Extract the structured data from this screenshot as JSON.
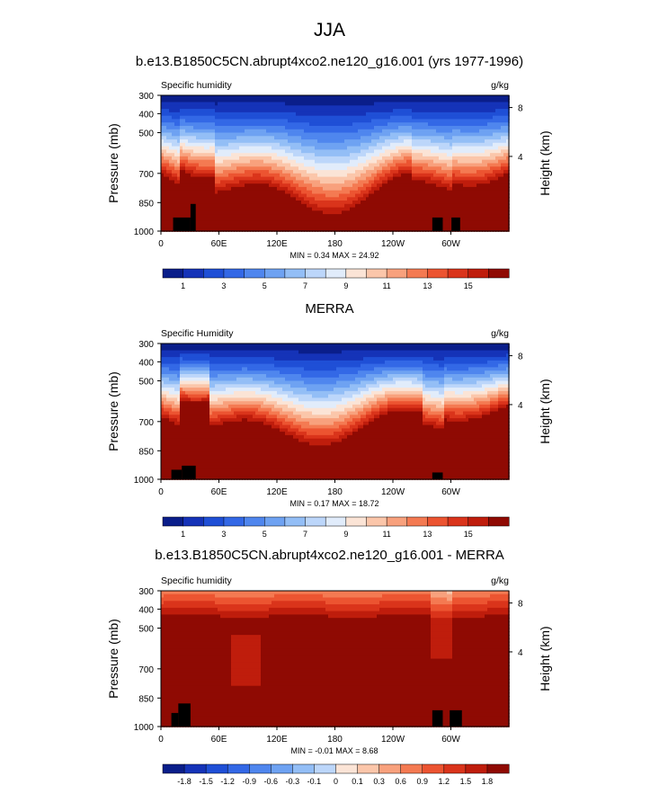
{
  "figure_title": "JJA",
  "chart_data": [
    {
      "type": "heatmap",
      "title": "b.e13.B1850C5CN.abrupt4xco2.ne120_g16.001 (yrs 1977-1996)",
      "variable_label": "Specific humidity",
      "units": "g/kg",
      "ylabel": "Pressure (mb)",
      "ylabel_right": "Height (km)",
      "x_ticks": [
        "0",
        "60E",
        "120E",
        "180",
        "120W",
        "60W"
      ],
      "y_ticks": [
        "300",
        "400",
        "500",
        "700",
        "850",
        "1000"
      ],
      "right_ticks": [
        "8",
        "4"
      ],
      "stats": "MIN =  0.34  MAX = 24.92",
      "colorbar_labels": [
        "1",
        "3",
        "5",
        "7",
        "9",
        "11",
        "13",
        "15"
      ],
      "min": 0.34,
      "max": 24.92
    },
    {
      "type": "heatmap",
      "title": "MERRA",
      "variable_label": "Specific Humidity",
      "units": "g/kg",
      "ylabel": "Pressure (mb)",
      "ylabel_right": "Height (km)",
      "x_ticks": [
        "0",
        "60E",
        "120E",
        "180",
        "120W",
        "60W"
      ],
      "y_ticks": [
        "300",
        "400",
        "500",
        "700",
        "850",
        "1000"
      ],
      "right_ticks": [
        "8",
        "4"
      ],
      "stats": "MIN =  0.17  MAX = 18.72",
      "colorbar_labels": [
        "1",
        "3",
        "5",
        "7",
        "9",
        "11",
        "13",
        "15"
      ],
      "min": 0.17,
      "max": 18.72
    },
    {
      "type": "heatmap",
      "title": "b.e13.B1850C5CN.abrupt4xco2.ne120_g16.001 - MERRA",
      "variable_label": "Specific humidity",
      "units": "g/kg",
      "ylabel": "Pressure (mb)",
      "ylabel_right": "Height (km)",
      "x_ticks": [
        "0",
        "60E",
        "120E",
        "180",
        "120W",
        "60W"
      ],
      "y_ticks": [
        "300",
        "400",
        "500",
        "700",
        "850",
        "1000"
      ],
      "right_ticks": [
        "8",
        "4"
      ],
      "stats": "MIN = -0.01  MAX =  8.68",
      "colorbar_labels": [
        "-1.8",
        "-1.5",
        "-1.2",
        "-0.9",
        "-0.6",
        "-0.3",
        "-0.1",
        "0",
        "0.1",
        "0.3",
        "0.6",
        "0.9",
        "1.2",
        "1.5",
        "1.8"
      ],
      "min": -0.01,
      "max": 8.68
    }
  ],
  "colormaps": {
    "absolute": [
      "#0a1e8a",
      "#1533b8",
      "#1f4fd6",
      "#3368e6",
      "#4f86ee",
      "#6ea2f2",
      "#93bef6",
      "#bcd6fa",
      "#e1ecfb",
      "#fbe4d6",
      "#fbc6aa",
      "#f8a17d",
      "#f47a52",
      "#ec5431",
      "#da341b",
      "#bf1d0c",
      "#8f0a03"
    ],
    "difference": [
      "#0a1e8a",
      "#1533b8",
      "#1f4fd6",
      "#3368e6",
      "#4f86ee",
      "#6ea2f2",
      "#93bef6",
      "#bcd6fa",
      "#e1ecfb",
      "#fbe4d6",
      "#fbc6aa",
      "#f8a17d",
      "#f47a52",
      "#ec5431",
      "#da341b",
      "#bf1d0c",
      "#8f0a03"
    ]
  }
}
